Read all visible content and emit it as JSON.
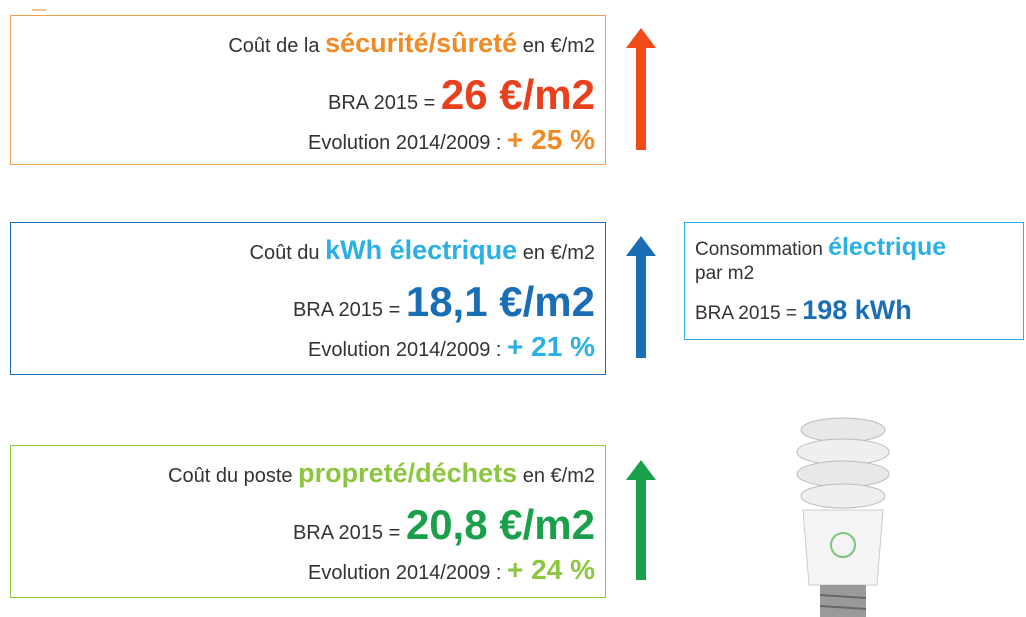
{
  "cards": [
    {
      "prefix": "Coût de la",
      "highlight": "sécurité/sûreté",
      "suffix": "en €/m2",
      "bra_label": "BRA 2015 =",
      "bra_value": "26 €/m2",
      "evolution_label": "Evolution 2014/2009 :",
      "evolution_value": "+ 25 %"
    },
    {
      "prefix": "Coût du",
      "highlight": "kWh électrique",
      "suffix": "en €/m2",
      "bra_label": "BRA 2015 =",
      "bra_value": "18,1 €/m2",
      "evolution_label": "Evolution 2014/2009 :",
      "evolution_value": "+ 21 %"
    },
    {
      "prefix": "Coût du poste",
      "highlight": "propreté/déchets",
      "suffix": "en €/m2",
      "bra_label": "BRA 2015 =",
      "bra_value": "20,8 €/m2",
      "evolution_label": "Evolution 2014/2009 :",
      "evolution_value": "+ 24 %"
    }
  ],
  "side_note": {
    "prefix": "Consommation",
    "highlight": "électrique",
    "line2": "par m2",
    "bra_label": "BRA 2015 =",
    "bra_value": "198 kWh"
  }
}
